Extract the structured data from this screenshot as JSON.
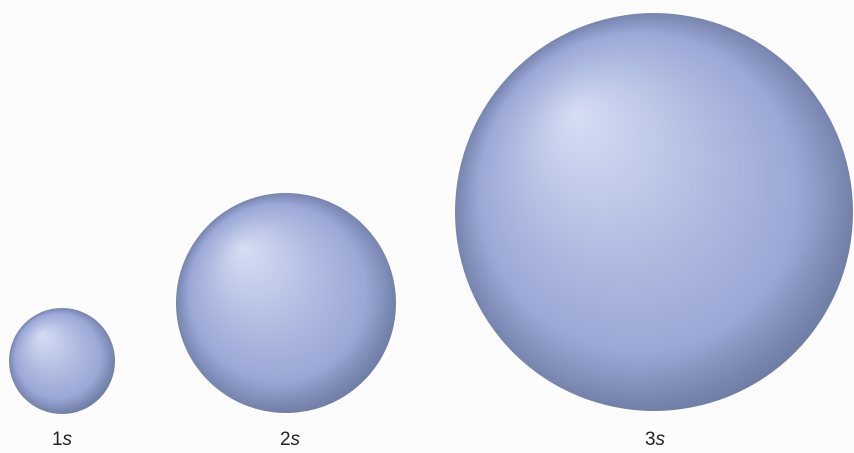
{
  "orbitals": [
    {
      "number": "1",
      "letter": "s"
    },
    {
      "number": "2",
      "letter": "s"
    },
    {
      "number": "3",
      "letter": "s"
    }
  ]
}
